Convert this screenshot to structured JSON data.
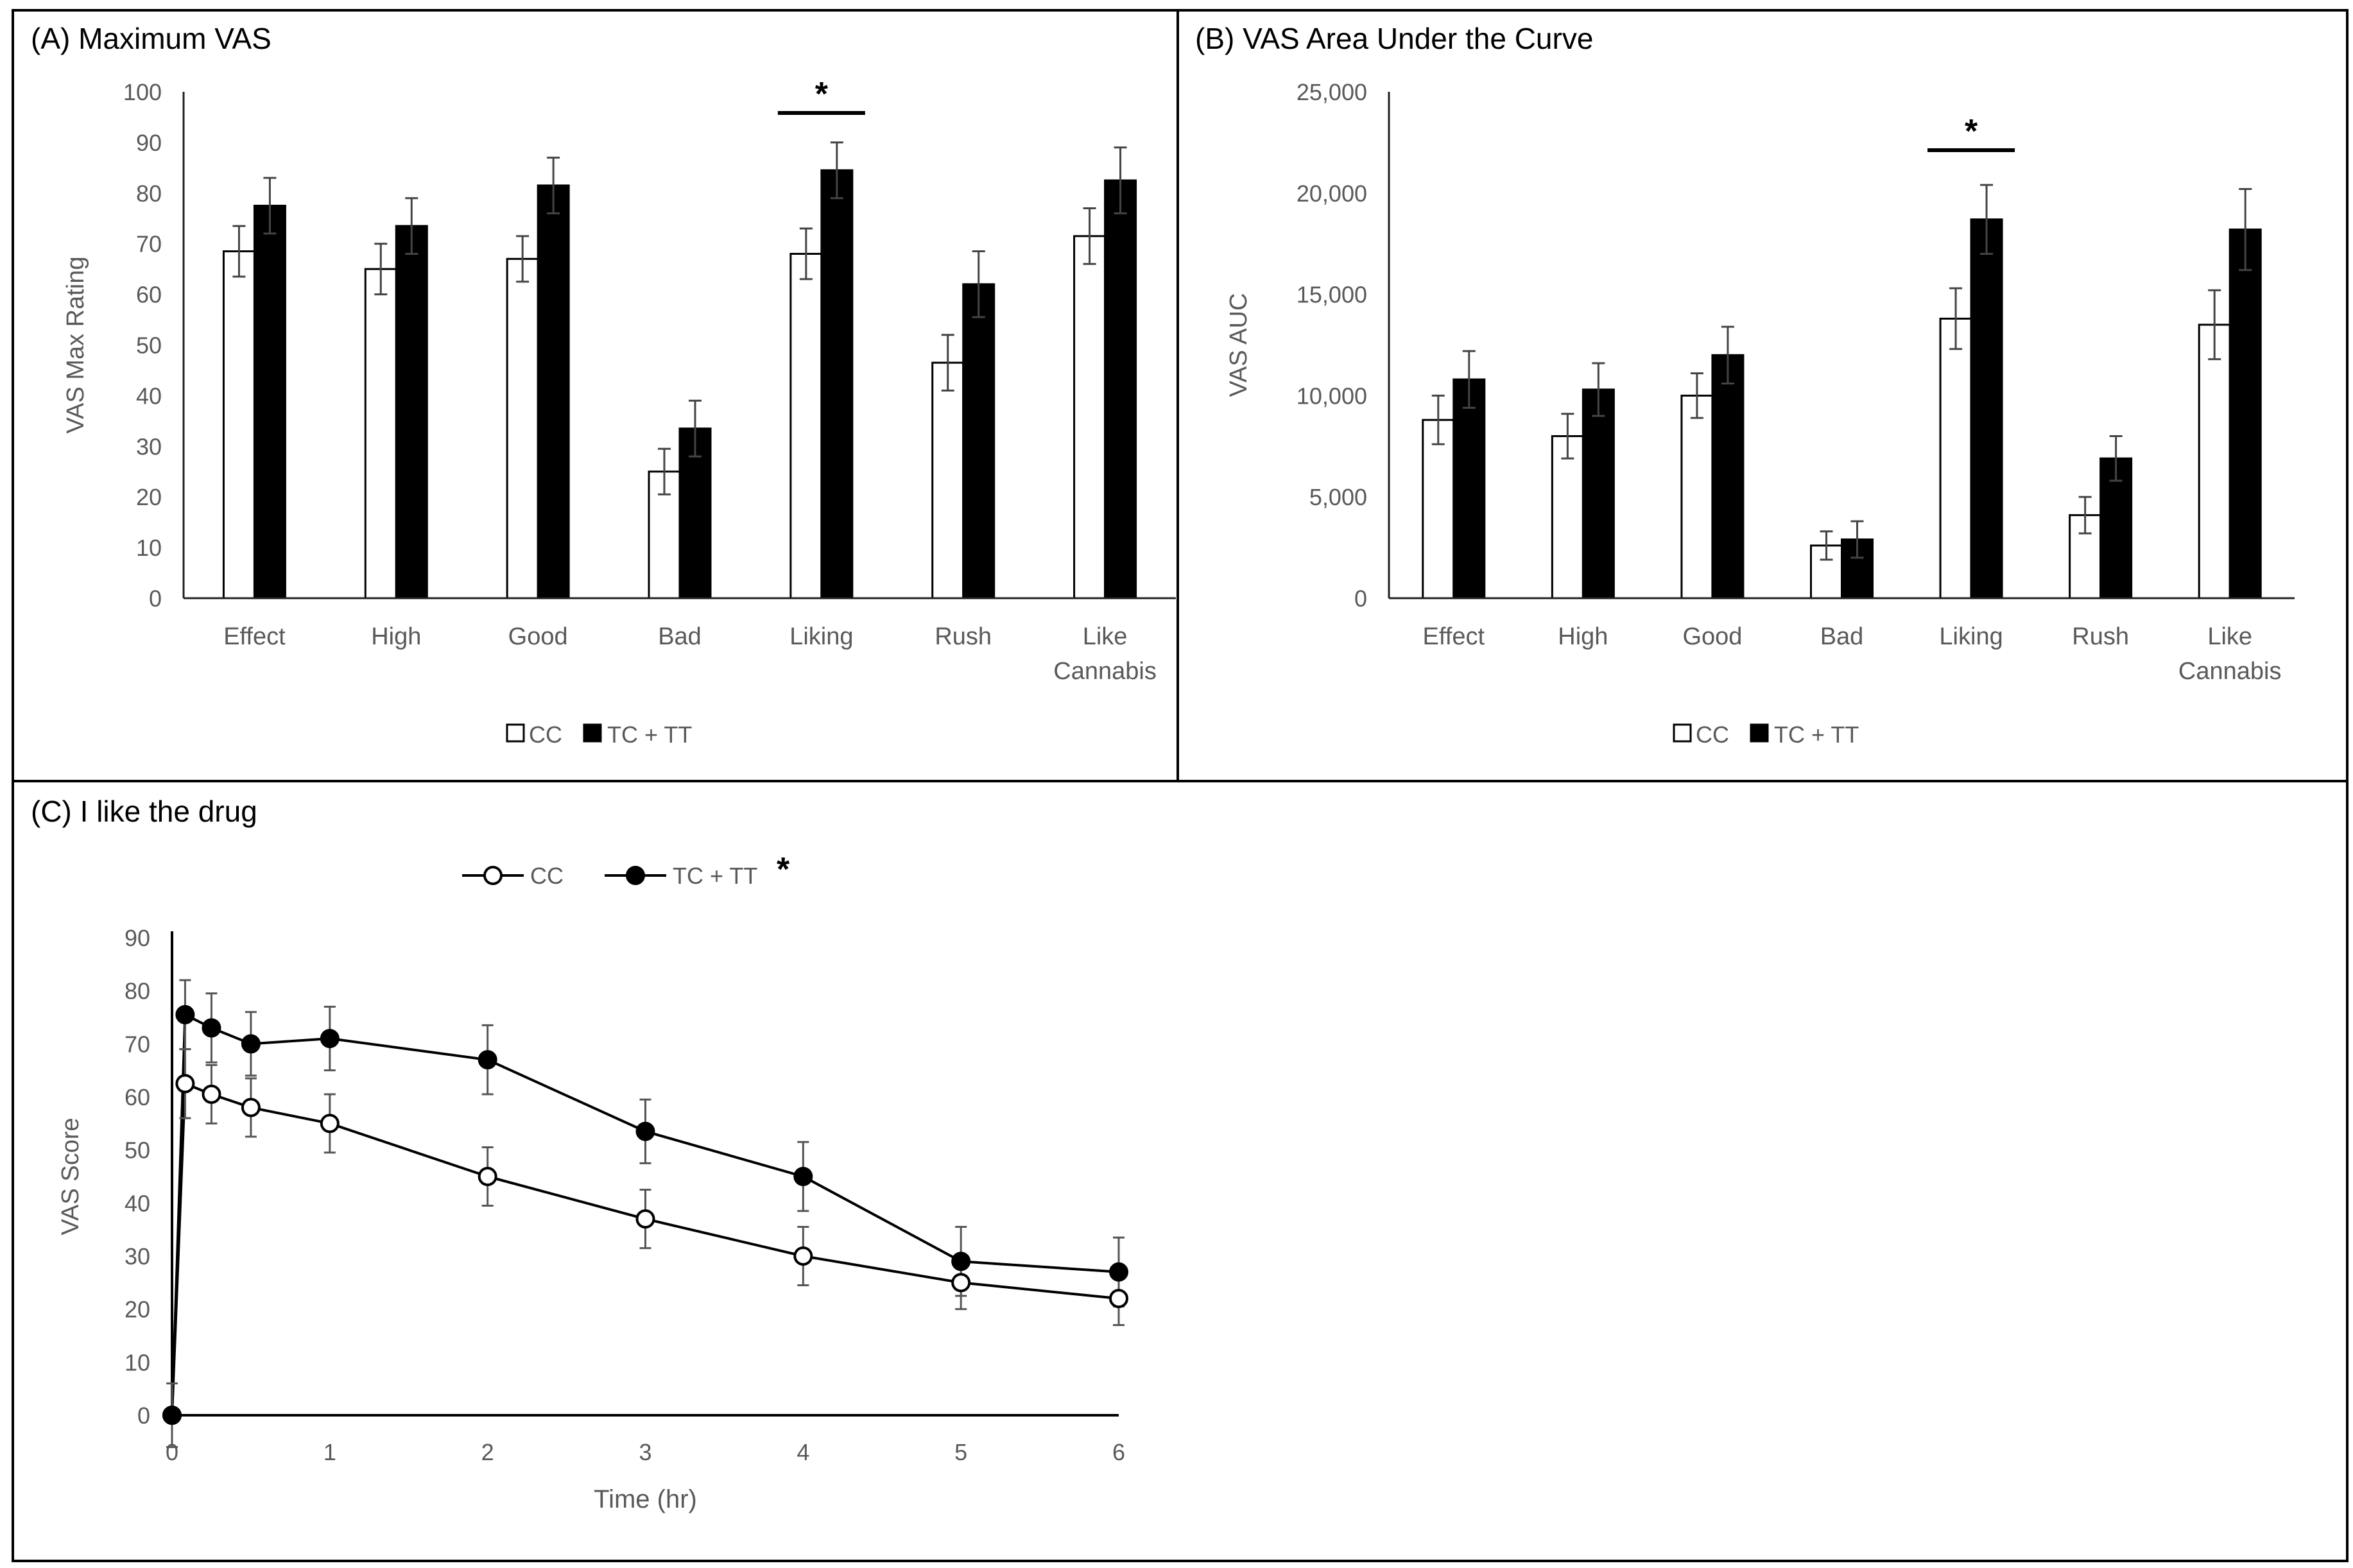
{
  "chart_data": [
    {
      "type": "bar",
      "title": "(A) Maximum VAS",
      "ylabel": "VAS Max Rating",
      "xlabel": "",
      "ylim": [
        0,
        100
      ],
      "yticks": [
        0,
        10,
        20,
        30,
        40,
        50,
        60,
        70,
        80,
        90,
        100
      ],
      "categories": [
        [
          "Effect"
        ],
        [
          "High"
        ],
        [
          "Good"
        ],
        [
          "Bad"
        ],
        [
          "Liking"
        ],
        [
          "Rush"
        ],
        [
          "Like",
          "Cannabis"
        ]
      ],
      "series": [
        {
          "name": "CC",
          "fill": "#ffffff",
          "values": [
            68.5,
            65,
            67,
            25,
            68,
            46.5,
            71.5
          ],
          "errors": [
            5,
            5,
            4.5,
            4.5,
            5,
            5.5,
            5.5
          ]
        },
        {
          "name": "TC + TT",
          "fill": "#000000",
          "values": [
            77.5,
            73.5,
            81.5,
            33.5,
            84.5,
            62,
            82.5
          ],
          "errors": [
            5.5,
            5.5,
            5.5,
            5.5,
            5.5,
            6.5,
            6.5
          ]
        }
      ],
      "significance": {
        "category_index": 4,
        "label": "*"
      },
      "legend_position": "bottom-center"
    },
    {
      "type": "bar",
      "title": "(B) VAS Area Under the Curve",
      "ylabel": "VAS AUC",
      "xlabel": "",
      "ylim": [
        0,
        25000
      ],
      "yticks": [
        0,
        5000,
        10000,
        15000,
        20000,
        25000
      ],
      "ytick_labels": [
        "0",
        "5,000",
        "10,000",
        "15,000",
        "20,000",
        "25,000"
      ],
      "categories": [
        [
          "Effect"
        ],
        [
          "High"
        ],
        [
          "Good"
        ],
        [
          "Bad"
        ],
        [
          "Liking"
        ],
        [
          "Rush"
        ],
        [
          "Like",
          "Cannabis"
        ]
      ],
      "series": [
        {
          "name": "CC",
          "fill": "#ffffff",
          "values": [
            8800,
            8000,
            10000,
            2600,
            13800,
            4100,
            13500
          ],
          "errors": [
            1200,
            1100,
            1100,
            700,
            1500,
            900,
            1700
          ]
        },
        {
          "name": "TC + TT",
          "fill": "#000000",
          "values": [
            10800,
            10300,
            12000,
            2900,
            18700,
            6900,
            18200
          ],
          "errors": [
            1400,
            1300,
            1400,
            900,
            1700,
            1100,
            2000
          ]
        }
      ],
      "significance": {
        "category_index": 4,
        "label": "*"
      },
      "legend_position": "bottom-center"
    },
    {
      "type": "line",
      "title": "(C) I like the drug",
      "ylabel": "VAS Score",
      "xlabel": "Time (hr)",
      "xlim": [
        0,
        6
      ],
      "ylim": [
        0,
        90
      ],
      "xticks": [
        0,
        1,
        2,
        3,
        4,
        5,
        6
      ],
      "yticks": [
        0,
        10,
        20,
        30,
        40,
        50,
        60,
        70,
        80,
        90
      ],
      "x": [
        0,
        0.083,
        0.25,
        0.5,
        1,
        2,
        3,
        4,
        5,
        6
      ],
      "series": [
        {
          "name": "CC",
          "marker": "open-circle",
          "values": [
            0,
            62.5,
            60.5,
            58,
            55,
            45,
            37,
            30,
            25,
            22
          ],
          "errors": [
            6,
            6.5,
            5.5,
            5.5,
            5.5,
            5.5,
            5.5,
            5.5,
            5,
            5
          ]
        },
        {
          "name": "TC + TT",
          "marker": "filled-circle",
          "values": [
            0,
            75.5,
            73,
            70,
            71,
            67,
            53.5,
            45,
            29,
            27
          ],
          "errors": [
            0,
            6.5,
            6.5,
            6,
            6,
            6.5,
            6,
            6.5,
            6.5,
            6.5
          ]
        }
      ],
      "significance_label": "*",
      "legend_position": "top-left"
    }
  ]
}
